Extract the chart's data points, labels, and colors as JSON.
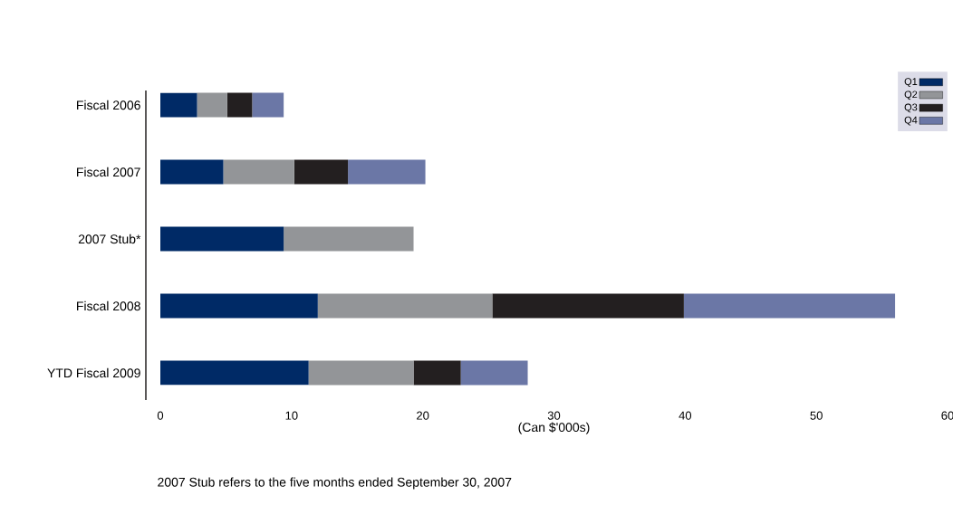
{
  "chart_data": {
    "type": "bar",
    "orientation": "horizontal",
    "stacked": true,
    "categories": [
      "Fiscal 2006",
      "Fiscal 2007",
      "2007 Stub*",
      "Fiscal 2008",
      "YTD Fiscal 2009"
    ],
    "series": [
      {
        "name": "Q1",
        "color": "#002a66",
        "values": [
          2.8,
          4.8,
          9.4,
          12.0,
          11.3
        ]
      },
      {
        "name": "Q2",
        "color": "#939598",
        "values": [
          2.3,
          5.4,
          9.9,
          13.3,
          8.0
        ]
      },
      {
        "name": "Q3",
        "color": "#231f20",
        "values": [
          1.9,
          4.1,
          null,
          14.6,
          3.6
        ]
      },
      {
        "name": "Q4",
        "color": "#6b77a6",
        "values": [
          2.4,
          5.9,
          null,
          16.1,
          5.1
        ]
      }
    ],
    "xlabel": "(Can $'000s)",
    "xlim": [
      0,
      60
    ],
    "xticks": [
      0,
      10,
      20,
      30,
      40,
      50,
      60
    ],
    "legend": "top right",
    "annotations": [
      "2007 Stub refers to the five months ended September 30, 2007"
    ]
  }
}
